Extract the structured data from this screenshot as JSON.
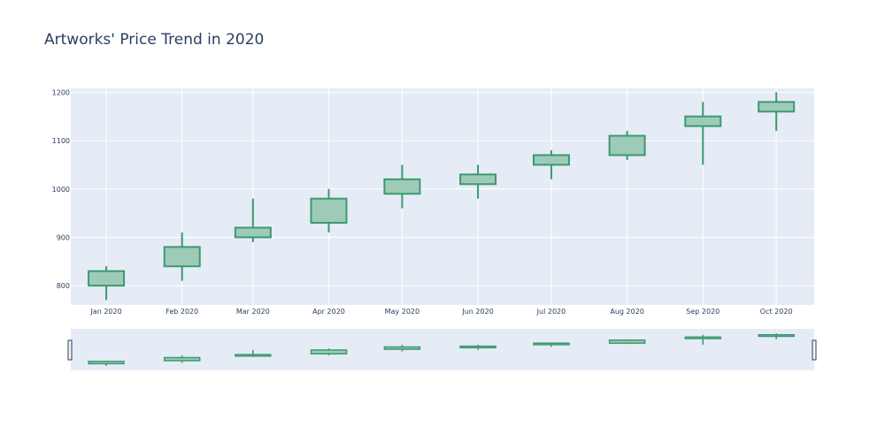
{
  "chart_data": {
    "type": "candlestick",
    "title": "Artworks' Price Trend in 2020",
    "xlabel": "",
    "ylabel": "",
    "categories": [
      "Jan 2020",
      "Feb 2020",
      "Mar 2020",
      "Apr 2020",
      "May 2020",
      "Jun 2020",
      "Jul 2020",
      "Aug 2020",
      "Sep 2020",
      "Oct 2020"
    ],
    "x_positions": [
      0,
      31,
      60,
      91,
      121,
      152,
      182,
      213,
      244,
      274
    ],
    "x_range": [
      -14.5,
      289.5
    ],
    "ylim": [
      760,
      1208
    ],
    "yticks": [
      800,
      900,
      1000,
      1100,
      1200
    ],
    "series": [
      {
        "open": [
          800,
          840,
          900,
          930,
          990,
          1010,
          1050,
          1070,
          1130,
          1160
        ],
        "high": [
          840,
          910,
          980,
          1000,
          1050,
          1050,
          1080,
          1120,
          1180,
          1200
        ],
        "low": [
          770,
          810,
          890,
          910,
          960,
          980,
          1020,
          1060,
          1050,
          1120
        ],
        "close": [
          830,
          880,
          920,
          980,
          1020,
          1030,
          1070,
          1110,
          1150,
          1180
        ]
      }
    ],
    "increasing_color": "#3d9970",
    "increasing_fill": "#9ecbb8",
    "plot_background": "#e5ecf6",
    "grid_color": "#ffffff",
    "grid": true,
    "range_slider": true
  }
}
